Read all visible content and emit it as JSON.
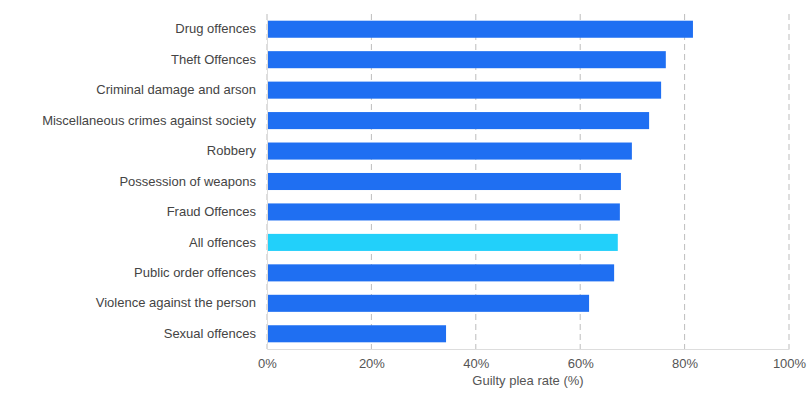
{
  "chart_data": {
    "type": "bar",
    "orientation": "horizontal",
    "categories": [
      "Drug offences",
      "Theft Offences",
      "Criminal damage and arson",
      "Miscellaneous crimes against society",
      "Robbery",
      "Possession of weapons",
      "Fraud Offences",
      "All offences",
      "Public order offences",
      "Violence against the person",
      "Sexual offences"
    ],
    "values": [
      81.6,
      76.4,
      75.5,
      73.2,
      69.9,
      67.8,
      67.6,
      67.2,
      66.5,
      61.7,
      34.3
    ],
    "colors": [
      "#1f6ff2",
      "#1f6ff2",
      "#1f6ff2",
      "#1f6ff2",
      "#1f6ff2",
      "#1f6ff2",
      "#1f6ff2",
      "#22d0fa",
      "#1f6ff2",
      "#1f6ff2",
      "#1f6ff2"
    ],
    "xlabel": "Guilty plea rate (%)",
    "xlim": [
      0,
      100
    ],
    "xticks": [
      {
        "value": 0,
        "label": "0%"
      },
      {
        "value": 20,
        "label": "20%"
      },
      {
        "value": 40,
        "label": "40%"
      },
      {
        "value": 60,
        "label": "60%"
      },
      {
        "value": 80,
        "label": "80%"
      },
      {
        "value": 100,
        "label": "100%"
      }
    ],
    "grid": true
  }
}
